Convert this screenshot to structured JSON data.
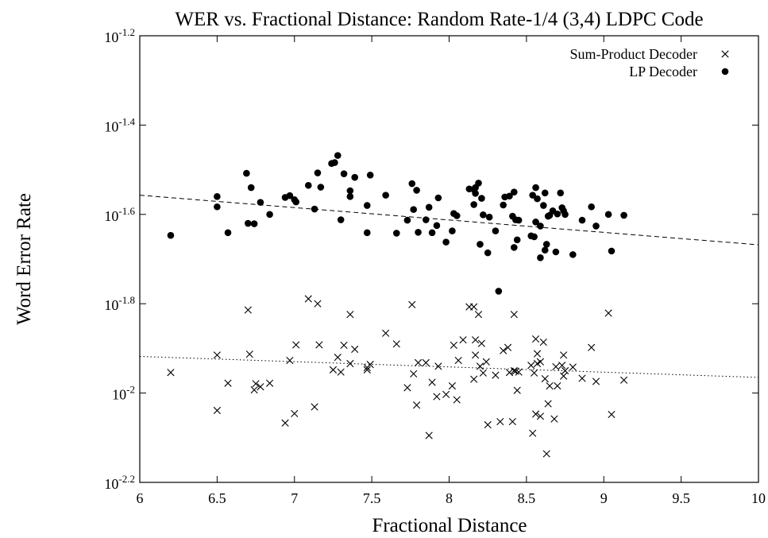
{
  "chart_data": {
    "type": "scatter",
    "title": "WER vs. Fractional Distance: Random Rate-1/4 (3,4) LDPC Code",
    "xlabel": "Fractional Distance",
    "ylabel": "Word Error Rate",
    "xlim": [
      6,
      10
    ],
    "ylim_log10": [
      -2.2,
      -1.2
    ],
    "y_scale": "log10",
    "grid": false,
    "legend_position": "top-right",
    "x_ticks": [
      {
        "value": 6,
        "label": "6"
      },
      {
        "value": 6.5,
        "label": "6.5"
      },
      {
        "value": 7,
        "label": "7"
      },
      {
        "value": 7.5,
        "label": "7.5"
      },
      {
        "value": 8,
        "label": "8"
      },
      {
        "value": 8.5,
        "label": "8.5"
      },
      {
        "value": 9,
        "label": "9"
      },
      {
        "value": 9.5,
        "label": "9.5"
      },
      {
        "value": 10,
        "label": "10"
      }
    ],
    "y_ticks": [
      {
        "value": -2.2,
        "base": "10",
        "exp": "-2.2"
      },
      {
        "value": -2.0,
        "base": "10",
        "exp": "-2"
      },
      {
        "value": -1.8,
        "base": "10",
        "exp": "-1.8"
      },
      {
        "value": -1.6,
        "base": "10",
        "exp": "-1.6"
      },
      {
        "value": -1.4,
        "base": "10",
        "exp": "-1.4"
      },
      {
        "value": -1.2,
        "base": "10",
        "exp": "-1.2"
      }
    ],
    "series": [
      {
        "name": "Sum-Product Decoder",
        "marker": "x",
        "fit_line": {
          "style": "dotted",
          "x": [
            6,
            10
          ],
          "log10_y": [
            -1.918,
            -1.965
          ]
        },
        "points_log10": [
          [
            6.2,
            -1.954
          ],
          [
            6.5,
            -1.915
          ],
          [
            6.5,
            -2.039
          ],
          [
            6.57,
            -1.978
          ],
          [
            6.7,
            -1.814
          ],
          [
            6.71,
            -1.913
          ],
          [
            6.74,
            -1.993
          ],
          [
            6.75,
            -1.979
          ],
          [
            6.78,
            -1.986
          ],
          [
            6.84,
            -1.978
          ],
          [
            6.94,
            -2.067
          ],
          [
            6.97,
            -1.927
          ],
          [
            7.0,
            -2.046
          ],
          [
            7.01,
            -1.892
          ],
          [
            7.09,
            -1.789
          ],
          [
            7.13,
            -2.031
          ],
          [
            7.15,
            -1.8
          ],
          [
            7.16,
            -1.892
          ],
          [
            7.25,
            -1.948
          ],
          [
            7.28,
            -1.92
          ],
          [
            7.3,
            -1.953
          ],
          [
            7.32,
            -1.893
          ],
          [
            7.36,
            -1.824
          ],
          [
            7.36,
            -1.934
          ],
          [
            7.39,
            -1.902
          ],
          [
            7.47,
            -1.948
          ],
          [
            7.47,
            -1.943
          ],
          [
            7.49,
            -1.936
          ],
          [
            7.59,
            -1.866
          ],
          [
            7.66,
            -1.89
          ],
          [
            7.73,
            -1.988
          ],
          [
            7.76,
            -1.802
          ],
          [
            7.77,
            -1.957
          ],
          [
            7.79,
            -2.027
          ],
          [
            7.8,
            -1.932
          ],
          [
            7.85,
            -1.932
          ],
          [
            7.87,
            -2.095
          ],
          [
            7.89,
            -1.976
          ],
          [
            7.92,
            -2.008
          ],
          [
            7.93,
            -1.94
          ],
          [
            7.98,
            -2.003
          ],
          [
            8.02,
            -1.984
          ],
          [
            8.03,
            -1.893
          ],
          [
            8.05,
            -2.015
          ],
          [
            8.06,
            -1.927
          ],
          [
            8.09,
            -1.881
          ],
          [
            8.13,
            -1.807
          ],
          [
            8.16,
            -1.807
          ],
          [
            8.16,
            -1.969
          ],
          [
            8.17,
            -1.881
          ],
          [
            8.17,
            -1.915
          ],
          [
            8.19,
            -1.824
          ],
          [
            8.2,
            -1.94
          ],
          [
            8.21,
            -1.889
          ],
          [
            8.22,
            -1.955
          ],
          [
            8.24,
            -1.93
          ],
          [
            8.25,
            -2.071
          ],
          [
            8.3,
            -1.96
          ],
          [
            8.33,
            -2.064
          ],
          [
            8.35,
            -1.905
          ],
          [
            8.38,
            -1.898
          ],
          [
            8.39,
            -1.954
          ],
          [
            8.41,
            -2.064
          ],
          [
            8.42,
            -1.824
          ],
          [
            8.42,
            -1.95
          ],
          [
            8.43,
            -1.951
          ],
          [
            8.44,
            -1.994
          ],
          [
            8.45,
            -1.953
          ],
          [
            8.53,
            -1.938
          ],
          [
            8.54,
            -2.09
          ],
          [
            8.55,
            -1.955
          ],
          [
            8.56,
            -1.879
          ],
          [
            8.56,
            -2.047
          ],
          [
            8.57,
            -1.912
          ],
          [
            8.57,
            -1.934
          ],
          [
            8.59,
            -1.93
          ],
          [
            8.59,
            -2.052
          ],
          [
            8.61,
            -1.886
          ],
          [
            8.62,
            -1.968
          ],
          [
            8.63,
            -2.136
          ],
          [
            8.64,
            -2.024
          ],
          [
            8.65,
            -1.984
          ],
          [
            8.68,
            -2.058
          ],
          [
            8.69,
            -1.941
          ],
          [
            8.7,
            -1.984
          ],
          [
            8.73,
            -1.938
          ],
          [
            8.74,
            -1.915
          ],
          [
            8.74,
            -1.962
          ],
          [
            8.75,
            -1.95
          ],
          [
            8.8,
            -1.942
          ],
          [
            8.86,
            -1.967
          ],
          [
            8.92,
            -1.898
          ],
          [
            8.95,
            -1.974
          ],
          [
            9.03,
            -1.821
          ],
          [
            9.05,
            -2.048
          ],
          [
            9.13,
            -1.971
          ]
        ]
      },
      {
        "name": "LP Decoder",
        "marker": "filled-circle",
        "fit_line": {
          "style": "dashed",
          "x": [
            6,
            10
          ],
          "log10_y": [
            -1.557,
            -1.668
          ]
        },
        "points_log10": [
          [
            6.2,
            -1.647
          ],
          [
            6.5,
            -1.583
          ],
          [
            6.5,
            -1.56
          ],
          [
            6.57,
            -1.641
          ],
          [
            6.69,
            -1.508
          ],
          [
            6.7,
            -1.62
          ],
          [
            6.72,
            -1.54
          ],
          [
            6.74,
            -1.621
          ],
          [
            6.78,
            -1.573
          ],
          [
            6.84,
            -1.6
          ],
          [
            6.94,
            -1.562
          ],
          [
            6.97,
            -1.558
          ],
          [
            7.0,
            -1.567
          ],
          [
            7.01,
            -1.572
          ],
          [
            7.09,
            -1.535
          ],
          [
            7.13,
            -1.588
          ],
          [
            7.15,
            -1.507
          ],
          [
            7.17,
            -1.539
          ],
          [
            7.24,
            -1.486
          ],
          [
            7.26,
            -1.484
          ],
          [
            7.28,
            -1.468
          ],
          [
            7.3,
            -1.612
          ],
          [
            7.32,
            -1.509
          ],
          [
            7.36,
            -1.56
          ],
          [
            7.36,
            -1.547
          ],
          [
            7.39,
            -1.517
          ],
          [
            7.47,
            -1.641
          ],
          [
            7.47,
            -1.58
          ],
          [
            7.49,
            -1.512
          ],
          [
            7.59,
            -1.557
          ],
          [
            7.66,
            -1.642
          ],
          [
            7.73,
            -1.613
          ],
          [
            7.76,
            -1.531
          ],
          [
            7.77,
            -1.589
          ],
          [
            7.79,
            -1.546
          ],
          [
            7.8,
            -1.64
          ],
          [
            7.85,
            -1.612
          ],
          [
            7.87,
            -1.584
          ],
          [
            7.89,
            -1.641
          ],
          [
            7.92,
            -1.625
          ],
          [
            7.93,
            -1.563
          ],
          [
            7.98,
            -1.662
          ],
          [
            8.02,
            -1.637
          ],
          [
            8.03,
            -1.598
          ],
          [
            8.05,
            -1.603
          ],
          [
            8.13,
            -1.543
          ],
          [
            8.16,
            -1.544
          ],
          [
            8.16,
            -1.578
          ],
          [
            8.17,
            -1.54
          ],
          [
            8.17,
            -1.553
          ],
          [
            8.19,
            -1.53
          ],
          [
            8.2,
            -1.667
          ],
          [
            8.21,
            -1.564
          ],
          [
            8.22,
            -1.601
          ],
          [
            8.25,
            -1.686
          ],
          [
            8.26,
            -1.606
          ],
          [
            8.3,
            -1.637
          ],
          [
            8.32,
            -1.772
          ],
          [
            8.35,
            -1.579
          ],
          [
            8.36,
            -1.561
          ],
          [
            8.39,
            -1.559
          ],
          [
            8.41,
            -1.604
          ],
          [
            8.42,
            -1.674
          ],
          [
            8.42,
            -1.55
          ],
          [
            8.43,
            -1.612
          ],
          [
            8.44,
            -1.657
          ],
          [
            8.45,
            -1.613
          ],
          [
            8.53,
            -1.648
          ],
          [
            8.54,
            -1.557
          ],
          [
            8.55,
            -1.65
          ],
          [
            8.56,
            -1.54
          ],
          [
            8.56,
            -1.617
          ],
          [
            8.57,
            -1.565
          ],
          [
            8.59,
            -1.626
          ],
          [
            8.59,
            -1.697
          ],
          [
            8.61,
            -1.58
          ],
          [
            8.62,
            -1.552
          ],
          [
            8.62,
            -1.68
          ],
          [
            8.63,
            -1.667
          ],
          [
            8.64,
            -1.604
          ],
          [
            8.65,
            -1.602
          ],
          [
            8.67,
            -1.592
          ],
          [
            8.69,
            -1.684
          ],
          [
            8.7,
            -1.599
          ],
          [
            8.72,
            -1.552
          ],
          [
            8.73,
            -1.585
          ],
          [
            8.74,
            -1.592
          ],
          [
            8.75,
            -1.6
          ],
          [
            8.8,
            -1.69
          ],
          [
            8.86,
            -1.613
          ],
          [
            8.92,
            -1.583
          ],
          [
            8.95,
            -1.626
          ],
          [
            9.03,
            -1.6
          ],
          [
            9.05,
            -1.682
          ],
          [
            9.13,
            -1.602
          ]
        ]
      }
    ]
  }
}
